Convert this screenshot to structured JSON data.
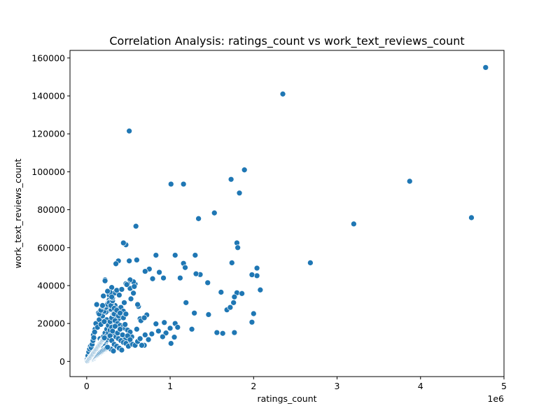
{
  "chart_data": {
    "type": "scatter",
    "title": "Correlation Analysis: ratings_count vs work_text_reviews_count",
    "xlabel": "ratings_count",
    "ylabel": "work_text_reviews_count",
    "x_offset_label": "1e6",
    "xlim": [
      -200000,
      5000000
    ],
    "ylim": [
      -8000,
      164000
    ],
    "xticks": [
      0,
      1000000,
      2000000,
      3000000,
      4000000,
      5000000
    ],
    "xtick_labels": [
      "0",
      "1",
      "2",
      "3",
      "4",
      "5"
    ],
    "yticks": [
      0,
      20000,
      40000,
      60000,
      80000,
      100000,
      120000,
      140000,
      160000
    ],
    "ytick_labels": [
      "0",
      "20000",
      "40000",
      "60000",
      "80000",
      "100000",
      "120000",
      "140000",
      "160000"
    ],
    "grid": false,
    "legend": "none",
    "marker_color": "#1f77b4",
    "marker_edge_color": "#ffffff",
    "series": [
      {
        "x": [
          4780000,
          2350000,
          510000,
          1890000,
          1010000,
          1160000,
          1730000,
          1830000,
          3870000,
          4610000,
          3200000,
          1530000,
          1340000,
          590000,
          470000,
          440000,
          1800000,
          1810000,
          2680000,
          1740000,
          1300000,
          1060000,
          1160000,
          1180000,
          2040000,
          2040000,
          1360000,
          1310000,
          1980000,
          830000,
          870000,
          750000,
          700000,
          790000,
          920000,
          1450000,
          1800000,
          1860000,
          1120000,
          1770000,
          1190000,
          1760000,
          1610000,
          1680000,
          1720000,
          2080000,
          2000000,
          1980000,
          1290000,
          1460000,
          1260000,
          1060000,
          1090000,
          1000000,
          950000,
          910000,
          1560000,
          1630000,
          1770000,
          930000,
          1010000,
          1050000,
          830000,
          780000,
          860000,
          700000,
          740000,
          690000,
          720000,
          640000,
          600000,
          580000,
          560000,
          520000,
          490000,
          510000,
          470000,
          520000,
          560000,
          620000,
          640000,
          660000,
          600000,
          540000,
          500000,
          460000,
          430000,
          400000,
          380000,
          350000,
          330000,
          300000,
          280000,
          260000,
          240000,
          220000,
          200000,
          180000,
          160000,
          140000,
          120000,
          100000,
          80000,
          60000,
          40000,
          30000,
          20000,
          10000,
          5000,
          15000,
          25000,
          35000,
          45000,
          55000,
          65000,
          75000,
          85000,
          95000,
          110000,
          130000,
          150000,
          170000,
          190000,
          210000,
          230000,
          250000,
          270000,
          290000,
          310000,
          340000,
          360000,
          390000,
          420000,
          450000,
          480000,
          530000,
          570000,
          610000,
          650000,
          690000,
          110000,
          130000,
          150000,
          170000,
          190000,
          210000,
          230000,
          250000,
          270000,
          290000,
          320000,
          350000,
          380000,
          410000,
          440000,
          90000,
          120000,
          140000,
          160000,
          180000,
          200000,
          220000,
          240000,
          260000,
          280000,
          300000,
          330000,
          360000,
          390000,
          420000,
          80000,
          100000,
          120000,
          140000,
          160000,
          180000,
          200000,
          220000,
          240000,
          260000,
          280000,
          300000,
          320000,
          340000,
          370000,
          400000,
          430000,
          460000,
          490000,
          520000,
          60000,
          80000,
          100000,
          120000,
          140000,
          160000,
          180000,
          200000,
          220000,
          240000,
          260000,
          280000,
          300000,
          320000,
          350000,
          380000,
          410000,
          440000,
          470000,
          500000,
          40000,
          60000,
          80000,
          100000,
          120000,
          140000,
          160000,
          180000,
          200000,
          220000,
          240000,
          260000,
          280000,
          300000,
          330000,
          360000,
          390000,
          420000,
          20000,
          40000,
          60000,
          80000,
          100000,
          120000,
          140000,
          160000,
          180000,
          200000,
          220000,
          240000,
          260000,
          290000,
          320000,
          10000,
          20000,
          30000,
          40000,
          50000,
          60000,
          70000,
          80000,
          90000,
          100000,
          110000,
          120000,
          130000,
          140000,
          150000,
          160000,
          170000,
          180000,
          190000,
          200000,
          210000,
          220000,
          230000,
          240000,
          250000,
          8000,
          12000,
          18000,
          22000,
          28000,
          32000,
          38000,
          42000,
          48000,
          52000,
          58000,
          62000,
          68000,
          72000,
          78000,
          82000,
          88000,
          92000,
          98000,
          102000,
          108000,
          112000,
          118000,
          122000,
          128000,
          132000,
          138000,
          142000,
          148000,
          152000,
          158000,
          162000,
          168000,
          172000,
          178000,
          182000,
          188000,
          192000,
          198000,
          202000,
          208000,
          212000,
          310000,
          340000,
          370000,
          400000,
          430000,
          460000,
          490000,
          520000,
          550000,
          580000,
          610000,
          640000,
          250000,
          280000,
          300000,
          330000,
          360000,
          380000,
          410000,
          440000,
          470000,
          210000,
          230000,
          250000,
          270000,
          290000,
          310000,
          150000,
          170000,
          190000,
          270000,
          310000,
          280000,
          250000,
          300000,
          220000,
          190000,
          330000,
          360000,
          400000
        ],
        "y": [
          155000,
          141000,
          121500,
          101000,
          93500,
          93500,
          96000,
          88800,
          95000,
          75800,
          72500,
          78300,
          75300,
          71300,
          61500,
          62500,
          62500,
          60000,
          52000,
          52000,
          56000,
          56000,
          51700,
          49500,
          49200,
          45200,
          45800,
          46200,
          45700,
          56000,
          47000,
          48700,
          47500,
          43600,
          44000,
          41500,
          36200,
          35800,
          44000,
          34000,
          31000,
          31000,
          36500,
          27200,
          28500,
          37700,
          25200,
          20700,
          25500,
          24700,
          17000,
          20000,
          18000,
          17500,
          15000,
          13000,
          15200,
          14800,
          15200,
          20500,
          9500,
          12800,
          19800,
          14500,
          16000,
          14000,
          11500,
          8500,
          24500,
          22000,
          53500,
          40800,
          42000,
          43000,
          41000,
          53000,
          41000,
          38500,
          36000,
          29000,
          22500,
          8500,
          17000,
          13000,
          9000,
          11500,
          26000,
          28000,
          53000,
          51500,
          36000,
          39000,
          29000,
          27000,
          22000,
          43000,
          34500,
          28000,
          12000,
          25500,
          30000,
          17000,
          14000,
          7000,
          4000,
          2000,
          1500,
          500,
          1000,
          3000,
          5000,
          6500,
          8000,
          7200,
          9000,
          11000,
          12500,
          15500,
          20000,
          18000,
          22000,
          19500,
          24000,
          21000,
          26000,
          30500,
          32500,
          27500,
          33500,
          29500,
          37500,
          35000,
          38000,
          31000,
          40500,
          33000,
          39500,
          30000,
          21500,
          23000,
          3000,
          5500,
          4500,
          6000,
          7500,
          9500,
          10500,
          13000,
          14500,
          16500,
          18500,
          20500,
          22500,
          24500,
          23000,
          2500,
          4000,
          6500,
          8500,
          10000,
          12000,
          14000,
          16000,
          18000,
          20000,
          22000,
          24000,
          26000,
          28000,
          27000,
          1500,
          3500,
          5000,
          7000,
          9000,
          11000,
          13000,
          15000,
          17000,
          19000,
          21000,
          23000,
          25000,
          21500,
          20000,
          19000,
          18000,
          17500,
          16500,
          15500,
          1000,
          2000,
          3000,
          4500,
          6000,
          7500,
          9000,
          10500,
          12000,
          13500,
          15000,
          16500,
          18000,
          14500,
          13000,
          12000,
          11000,
          10000,
          9500,
          8000,
          800,
          1500,
          2200,
          3500,
          4800,
          6000,
          7200,
          8400,
          9600,
          10800,
          11500,
          12500,
          13500,
          11000,
          9000,
          8000,
          7000,
          6000,
          500,
          900,
          1300,
          2000,
          2600,
          3200,
          3800,
          4400,
          5000,
          5600,
          6200,
          6800,
          7400,
          6500,
          5500,
          300,
          600,
          900,
          1200,
          1500,
          1800,
          2100,
          2400,
          2700,
          3000,
          3300,
          3600,
          3900,
          4200,
          4500,
          4800,
          5100,
          5400,
          5700,
          6000,
          6300,
          6600,
          6900,
          7200,
          7500,
          200,
          400,
          700,
          1000,
          1300,
          1600,
          1900,
          2200,
          2500,
          2800,
          3100,
          3400,
          3700,
          4000,
          4300,
          4600,
          4900,
          5200,
          5500,
          5800,
          6100,
          6400,
          6700,
          7000,
          7300,
          7600,
          7900,
          8200,
          8500,
          8800,
          9100,
          9400,
          9700,
          10000,
          10300,
          10600,
          10900,
          11200,
          11500,
          11800,
          12100,
          12400,
          16000,
          18500,
          15000,
          17000,
          14000,
          19500,
          13500,
          11500,
          9000,
          8500,
          10500,
          12000,
          29000,
          31500,
          30500,
          25000,
          27500,
          24000,
          28500,
          26500,
          25000,
          26500,
          28500,
          30000,
          31000,
          29500,
          32000,
          25000,
          27000,
          29000,
          35000,
          33500,
          36500,
          37000,
          34000,
          42500,
          29500,
          28000,
          27000,
          25500
        ]
      }
    ]
  }
}
